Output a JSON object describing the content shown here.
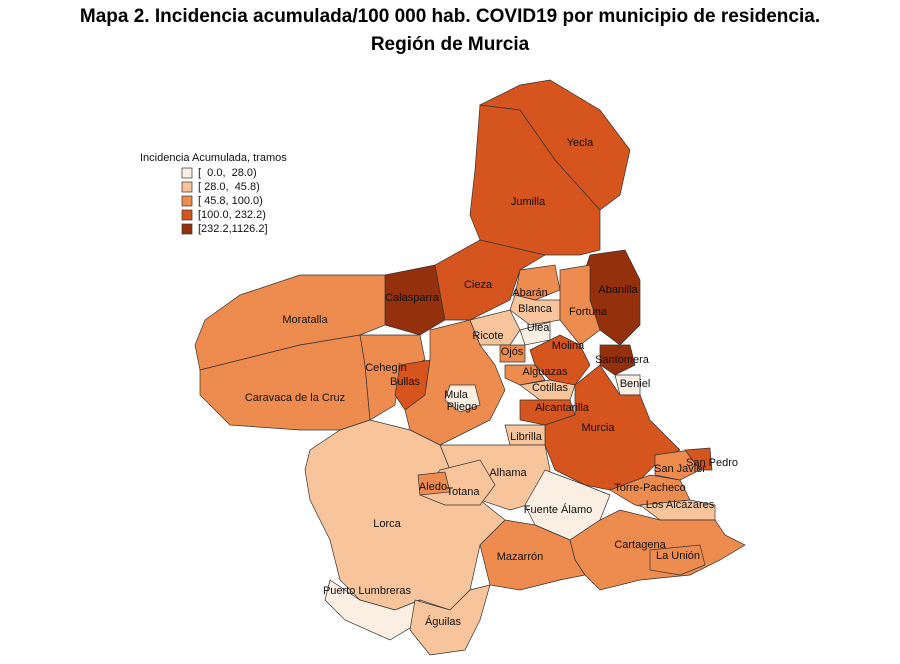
{
  "title": [
    "Mapa 2. Incidencia acumulada/100 000 hab. COVID19 por municipio de residencia.",
    "Región de Murcia"
  ],
  "legend": {
    "title": "Incidencia Acumulada, tramos",
    "items": [
      {
        "label": "[  0.0,  28.0)",
        "color": "#fbeee2"
      },
      {
        "label": "[ 28.0,  45.8)",
        "color": "#f8c49c"
      },
      {
        "label": "[ 45.8, 100.0)",
        "color": "#ee8c4f"
      },
      {
        "label": "[100.0, 232.2)",
        "color": "#d6541d"
      },
      {
        "label": "[232.2,1126.2]",
        "color": "#94300c"
      }
    ]
  },
  "municipalities": [
    {
      "name": "Yecla",
      "color": "#d6541d"
    },
    {
      "name": "Jumilla",
      "color": "#d6541d"
    },
    {
      "name": "Calasparra",
      "color": "#94300c"
    },
    {
      "name": "Cieza",
      "color": "#d6541d"
    },
    {
      "name": "Moratalla",
      "color": "#ee8c4f"
    },
    {
      "name": "Caravaca de la Cruz",
      "color": "#ee8c4f"
    },
    {
      "name": "Cehegín",
      "color": "#ee8c4f"
    },
    {
      "name": "Bullas",
      "color": "#d6541d"
    },
    {
      "name": "Mula",
      "color": "#ee8c4f"
    },
    {
      "name": "Pliego",
      "color": "#fbeee2"
    },
    {
      "name": "Abarán",
      "color": "#ee8c4f"
    },
    {
      "name": "Blanca",
      "color": "#f8c49c"
    },
    {
      "name": "Ricote",
      "color": "#f8c49c"
    },
    {
      "name": "Ulea",
      "color": "#fbeee2"
    },
    {
      "name": "Ojós",
      "color": "#ee8c4f"
    },
    {
      "name": "Abanilla",
      "color": "#94300c"
    },
    {
      "name": "Fortuna",
      "color": "#ee8c4f"
    },
    {
      "name": "Molina",
      "color": "#d6541d"
    },
    {
      "name": "Santomera",
      "color": "#94300c"
    },
    {
      "name": "Beniel",
      "color": "#fbeee2"
    },
    {
      "name": "Alguazas",
      "color": "#ee8c4f"
    },
    {
      "name": "Cotillas",
      "color": "#f8c49c"
    },
    {
      "name": "Alcantarilla",
      "color": "#d6541d"
    },
    {
      "name": "Murcia",
      "color": "#d6541d"
    },
    {
      "name": "Librilla",
      "color": "#f8c49c"
    },
    {
      "name": "Alhama",
      "color": "#f8c49c"
    },
    {
      "name": "Lorca",
      "color": "#f8c49c"
    },
    {
      "name": "Totana",
      "color": "#f8c49c"
    },
    {
      "name": "Aledo",
      "color": "#ee8c4f"
    },
    {
      "name": "Fuente Álamo",
      "color": "#fbeee2"
    },
    {
      "name": "Torre-Pacheco",
      "color": "#ee8c4f"
    },
    {
      "name": "San Javier",
      "color": "#ee8c4f"
    },
    {
      "name": "San Pedro",
      "color": "#d6541d"
    },
    {
      "name": "Los Alcázares",
      "color": "#f8c49c"
    },
    {
      "name": "Cartagena",
      "color": "#ee8c4f"
    },
    {
      "name": "La Unión",
      "color": "#ee8c4f"
    },
    {
      "name": "Mazarrón",
      "color": "#ee8c4f"
    },
    {
      "name": "Puerto Lumbreras",
      "color": "#fbeee2"
    },
    {
      "name": "Águilas",
      "color": "#f8c49c"
    }
  ]
}
